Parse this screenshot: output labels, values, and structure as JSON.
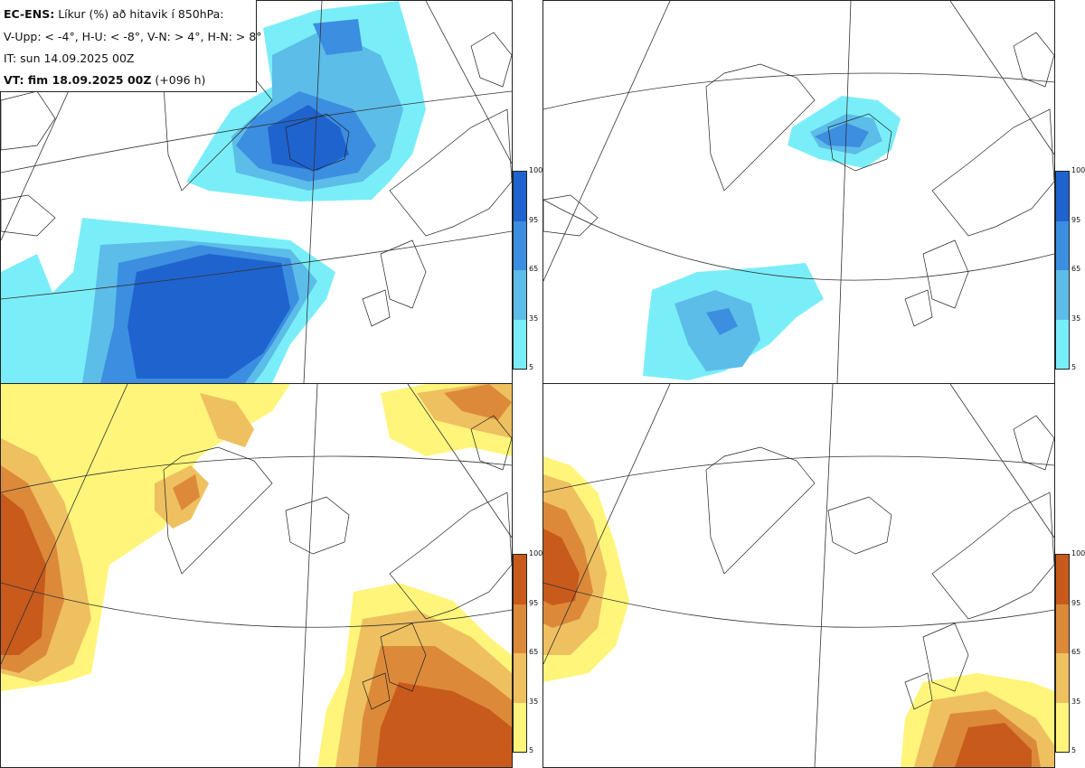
{
  "header": {
    "model_label": "EC-ENS:",
    "title_rest": "Líkur (%) að hitavik í 850hPa:",
    "criteria": "V-Upp: < -4°, H-U: < -8°, V-N: > 4°, H-N: > 8°",
    "init_time": "IT: sun 14.09.2025 00Z",
    "valid_prefix": "VT: fim 18.09.2025 00Z",
    "valid_suffix": "(+096 h)"
  },
  "colorbars": {
    "cold": {
      "ticks": [
        "100",
        "95",
        "65",
        "35",
        "5"
      ],
      "colors": [
        "#1f63cf",
        "#3c8ee0",
        "#5cbde8",
        "#7aeef8"
      ]
    },
    "warm": {
      "ticks": [
        "100",
        "95",
        "65",
        "35",
        "5"
      ],
      "colors": [
        "#c85a1c",
        "#dc8a3a",
        "#eec060",
        "#fff57a"
      ]
    }
  },
  "panels": [
    {
      "id": "v-upp",
      "palette": "cold"
    },
    {
      "id": "h-u",
      "palette": "cold"
    },
    {
      "id": "v-n",
      "palette": "warm"
    },
    {
      "id": "h-n",
      "palette": "warm"
    }
  ]
}
